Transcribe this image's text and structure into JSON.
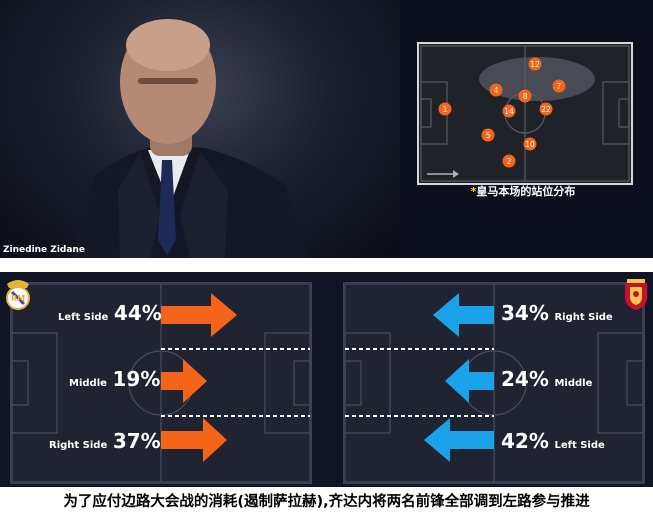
{
  "photo": {
    "caption": "Zinedine Zidane"
  },
  "formation": {
    "caption": "皇马本场的站位分布",
    "caption_star": "*",
    "players": [
      "12",
      "4",
      "7",
      "8",
      "1",
      "14",
      "22",
      "5",
      "10",
      "2"
    ]
  },
  "attack_left": {
    "team": "Real Madrid",
    "rows": [
      {
        "side": "Left Side",
        "pct": "44%"
      },
      {
        "side": "Middle",
        "pct": "19%"
      },
      {
        "side": "Right Side",
        "pct": "37%"
      }
    ],
    "arrow_color": "#f4651a"
  },
  "attack_right": {
    "team": "Liverpool",
    "rows": [
      {
        "side": "Right Side",
        "pct": "34%"
      },
      {
        "side": "Middle",
        "pct": "24%"
      },
      {
        "side": "Left Side",
        "pct": "42%"
      }
    ],
    "arrow_color": "#1aa3e8"
  },
  "caption": "为了应付边路大会战的消耗(遏制萨拉赫),齐达内将两名前锋全部调到左路参与推进",
  "colors": {
    "player_dot": "#f4651a",
    "pitch_line": "#585b63"
  }
}
